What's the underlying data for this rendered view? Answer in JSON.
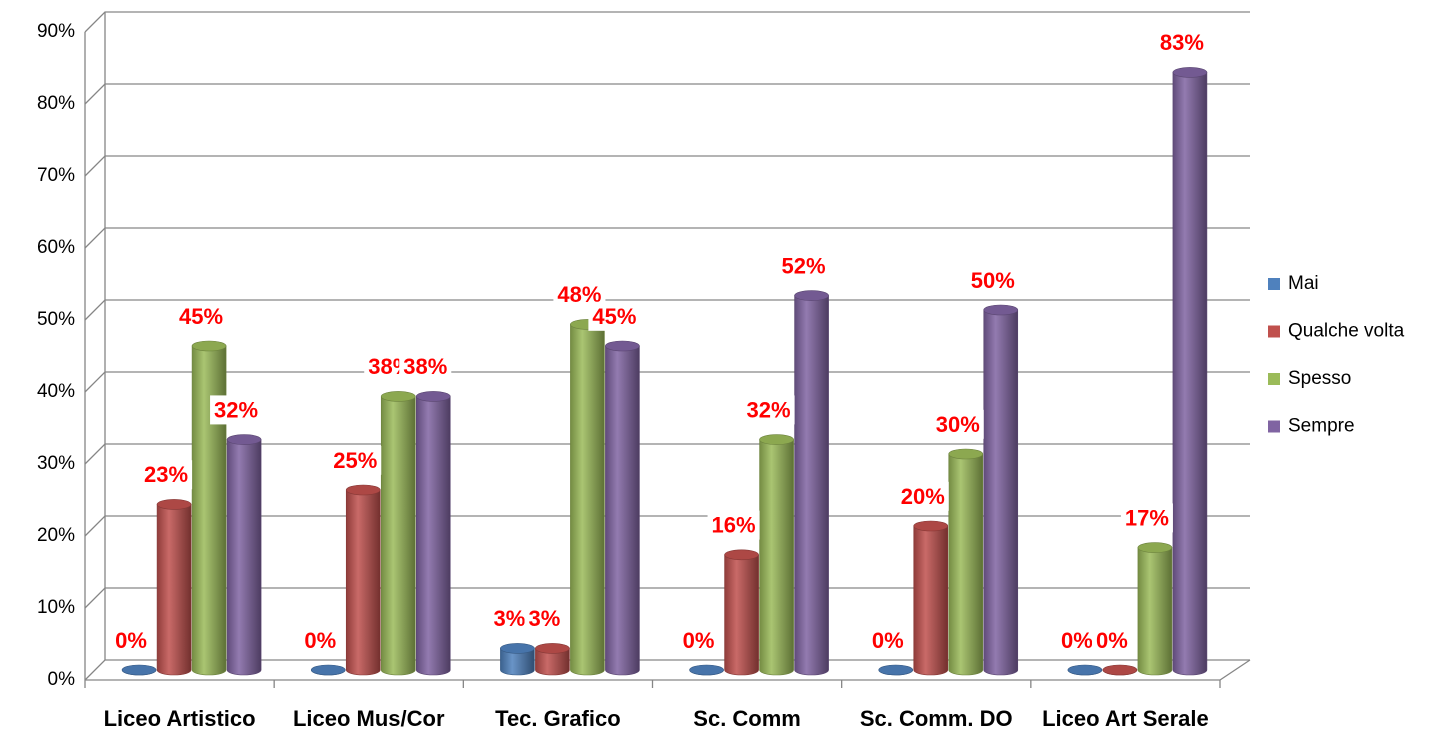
{
  "chart_data": {
    "type": "bar3d",
    "categories": [
      "Liceo Artistico",
      "Liceo Mus/Cor",
      "Tec. Grafico",
      "Sc. Comm",
      "Sc. Comm. DO",
      "Liceo Art Serale"
    ],
    "series": [
      {
        "name": "Mai",
        "color": "#4f81bd",
        "values": [
          0,
          0,
          3,
          0,
          0,
          0
        ],
        "value_labels": [
          "0%",
          "0%",
          "3%",
          "0%",
          "0%",
          "0%"
        ]
      },
      {
        "name": "Qualche volta",
        "color": "#c0504d",
        "values": [
          23,
          25,
          3,
          16,
          20,
          0
        ],
        "value_labels": [
          "23%",
          "25%",
          "3%",
          "16%",
          "20%",
          "0%"
        ]
      },
      {
        "name": "Spesso",
        "color": "#9bbb59",
        "values": [
          45,
          38,
          48,
          32,
          30,
          17
        ],
        "value_labels": [
          "45%",
          "38%",
          "48%",
          "32%",
          "30%",
          "17%"
        ]
      },
      {
        "name": "Sempre",
        "color": "#8064a2",
        "values": [
          32,
          38,
          45,
          52,
          50,
          83
        ],
        "value_labels": [
          "32%",
          "38%",
          "45%",
          "52%",
          "50%",
          "83%"
        ]
      }
    ],
    "ylim": [
      0,
      90
    ],
    "yticks": [
      {
        "value": 0,
        "label": "0%"
      },
      {
        "value": 10,
        "label": "10%"
      },
      {
        "value": 20,
        "label": "20%"
      },
      {
        "value": 30,
        "label": "30%"
      },
      {
        "value": 40,
        "label": "40%"
      },
      {
        "value": 50,
        "label": "50%"
      },
      {
        "value": 60,
        "label": "60%"
      },
      {
        "value": 70,
        "label": "70%"
      },
      {
        "value": 80,
        "label": "80%"
      },
      {
        "value": 90,
        "label": "90%"
      }
    ],
    "grid": true,
    "legend": "right"
  }
}
